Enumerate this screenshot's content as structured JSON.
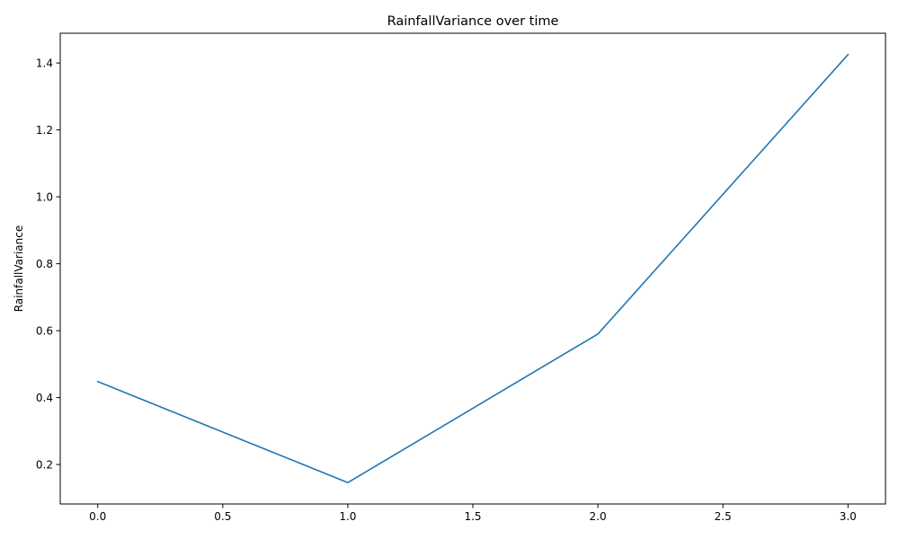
{
  "chart_data": {
    "type": "line",
    "title": "RainfallVariance over time",
    "xlabel": "",
    "ylabel": "RainfallVariance",
    "x": [
      0,
      1,
      2,
      3
    ],
    "series": [
      {
        "values": [
          0.448,
          0.146,
          0.59,
          1.425
        ],
        "color": "#1f77b4"
      }
    ],
    "xlim": [
      -0.15,
      3.15
    ],
    "ylim": [
      0.0821,
      1.4889
    ],
    "xticks": [
      0.0,
      0.5,
      1.0,
      1.5,
      2.0,
      2.5,
      3.0
    ],
    "xtick_labels": [
      "0.0",
      "0.5",
      "1.0",
      "1.5",
      "2.0",
      "2.5",
      "3.0"
    ],
    "yticks": [
      0.2,
      0.4,
      0.6,
      0.8,
      1.0,
      1.2,
      1.4
    ],
    "ytick_labels": [
      "0.2",
      "0.4",
      "0.6",
      "0.8",
      "1.0",
      "1.2",
      "1.4"
    ],
    "grid": false,
    "legend": "none"
  }
}
